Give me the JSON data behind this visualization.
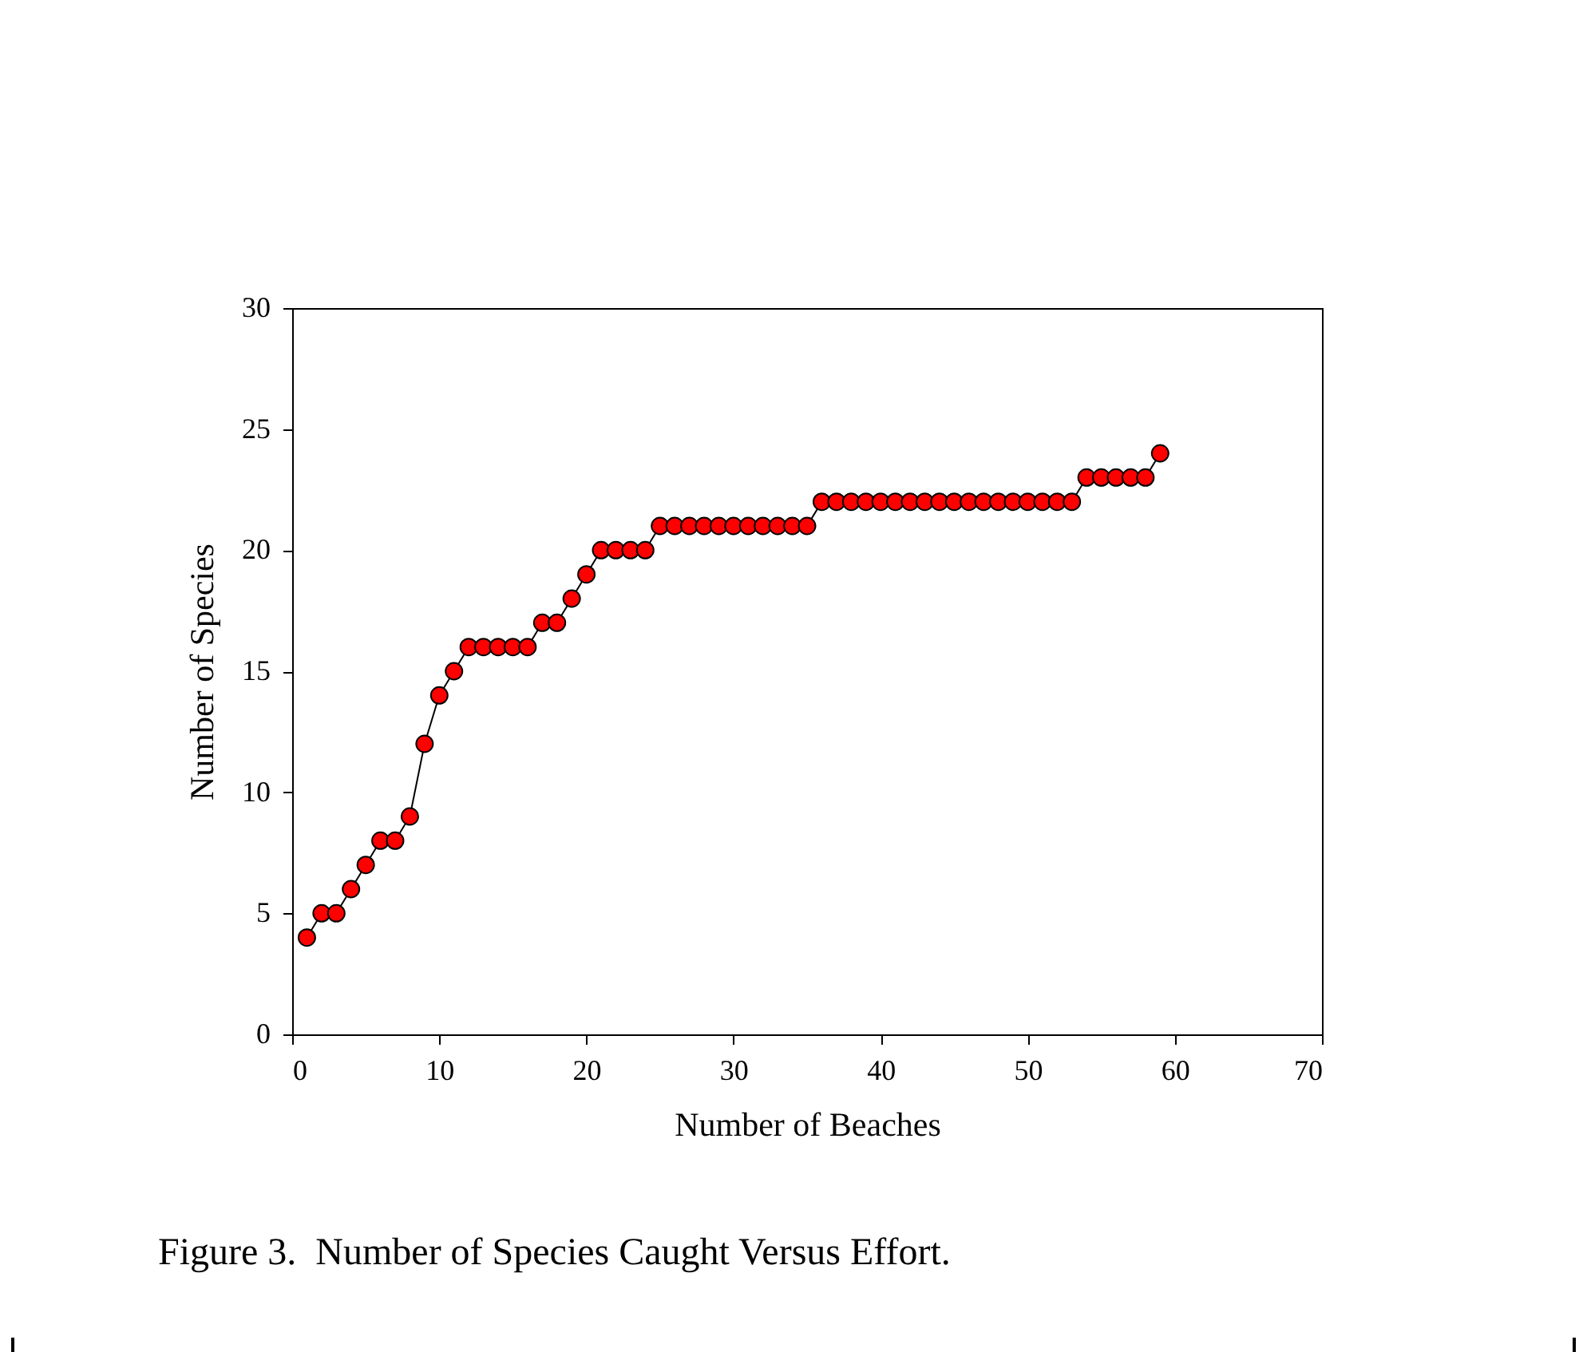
{
  "chart_data": {
    "type": "line",
    "xlabel": "Number of Beaches",
    "ylabel": "Number of Species",
    "annotations": [
      "Figure 3.  Number of Species Caught Versus Effort."
    ],
    "x": [
      1,
      2,
      3,
      4,
      5,
      6,
      7,
      8,
      9,
      10,
      11,
      12,
      13,
      14,
      15,
      16,
      17,
      18,
      19,
      20,
      21,
      22,
      23,
      24,
      25,
      26,
      27,
      28,
      29,
      30,
      31,
      32,
      33,
      34,
      35,
      36,
      37,
      38,
      39,
      40,
      41,
      42,
      43,
      44,
      45,
      46,
      47,
      48,
      49,
      50,
      51,
      52,
      53,
      54,
      55,
      56,
      57,
      58,
      59
    ],
    "series": [
      {
        "color": "#ff0000",
        "values": [
          4,
          5,
          5,
          6,
          7,
          8,
          8,
          9,
          12,
          14,
          15,
          16,
          16,
          16,
          16,
          16,
          17,
          17,
          18,
          19,
          20,
          20,
          20,
          20,
          21,
          21,
          21,
          21,
          21,
          21,
          21,
          21,
          21,
          21,
          21,
          22,
          22,
          22,
          22,
          22,
          22,
          22,
          22,
          22,
          22,
          22,
          22,
          22,
          22,
          22,
          22,
          22,
          22,
          23,
          23,
          23,
          23,
          23,
          24
        ]
      }
    ],
    "xlim": [
      0,
      70
    ],
    "xticks": [
      0,
      10,
      20,
      30,
      40,
      50,
      60,
      70
    ],
    "ylim": [
      0,
      30
    ],
    "yticks": [
      0,
      5,
      10,
      15,
      20,
      25,
      30
    ],
    "grid": false,
    "marker": "circle",
    "line_style": "solid"
  }
}
